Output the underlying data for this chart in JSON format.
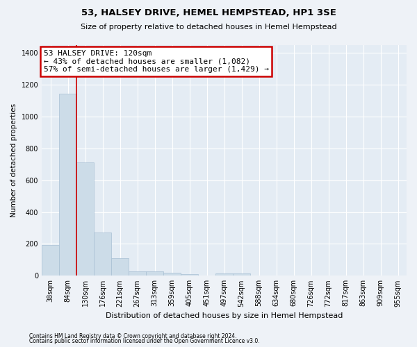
{
  "title": "53, HALSEY DRIVE, HEMEL HEMPSTEAD, HP1 3SE",
  "subtitle": "Size of property relative to detached houses in Hemel Hempstead",
  "xlabel": "Distribution of detached houses by size in Hemel Hempstead",
  "ylabel": "Number of detached properties",
  "footnote1": "Contains HM Land Registry data © Crown copyright and database right 2024.",
  "footnote2": "Contains public sector information licensed under the Open Government Licence v3.0.",
  "bar_labels": [
    "38sqm",
    "84sqm",
    "130sqm",
    "176sqm",
    "221sqm",
    "267sqm",
    "313sqm",
    "359sqm",
    "405sqm",
    "451sqm",
    "497sqm",
    "542sqm",
    "588sqm",
    "634sqm",
    "680sqm",
    "726sqm",
    "772sqm",
    "817sqm",
    "863sqm",
    "909sqm",
    "955sqm"
  ],
  "bar_values": [
    193,
    1143,
    714,
    270,
    112,
    28,
    28,
    20,
    8,
    0,
    13,
    13,
    0,
    0,
    0,
    0,
    0,
    0,
    0,
    0,
    0
  ],
  "bar_color": "#ccdce8",
  "bar_edge_color": "#a8c0d4",
  "ylim": [
    0,
    1450
  ],
  "yticks": [
    0,
    200,
    400,
    600,
    800,
    1000,
    1200,
    1400
  ],
  "red_line_x": 1.5,
  "annotation_text": "53 HALSEY DRIVE: 120sqm\n← 43% of detached houses are smaller (1,082)\n57% of semi-detached houses are larger (1,429) →",
  "annotation_box_color": "#ffffff",
  "annotation_box_edge": "#cc0000",
  "background_color": "#eef2f7",
  "plot_bg_color": "#e4ecf4",
  "title_fontsize": 9.5,
  "subtitle_fontsize": 8,
  "annot_fontsize": 8,
  "ylabel_fontsize": 7.5,
  "xlabel_fontsize": 8,
  "tick_fontsize": 7,
  "footnote_fontsize": 5.5
}
